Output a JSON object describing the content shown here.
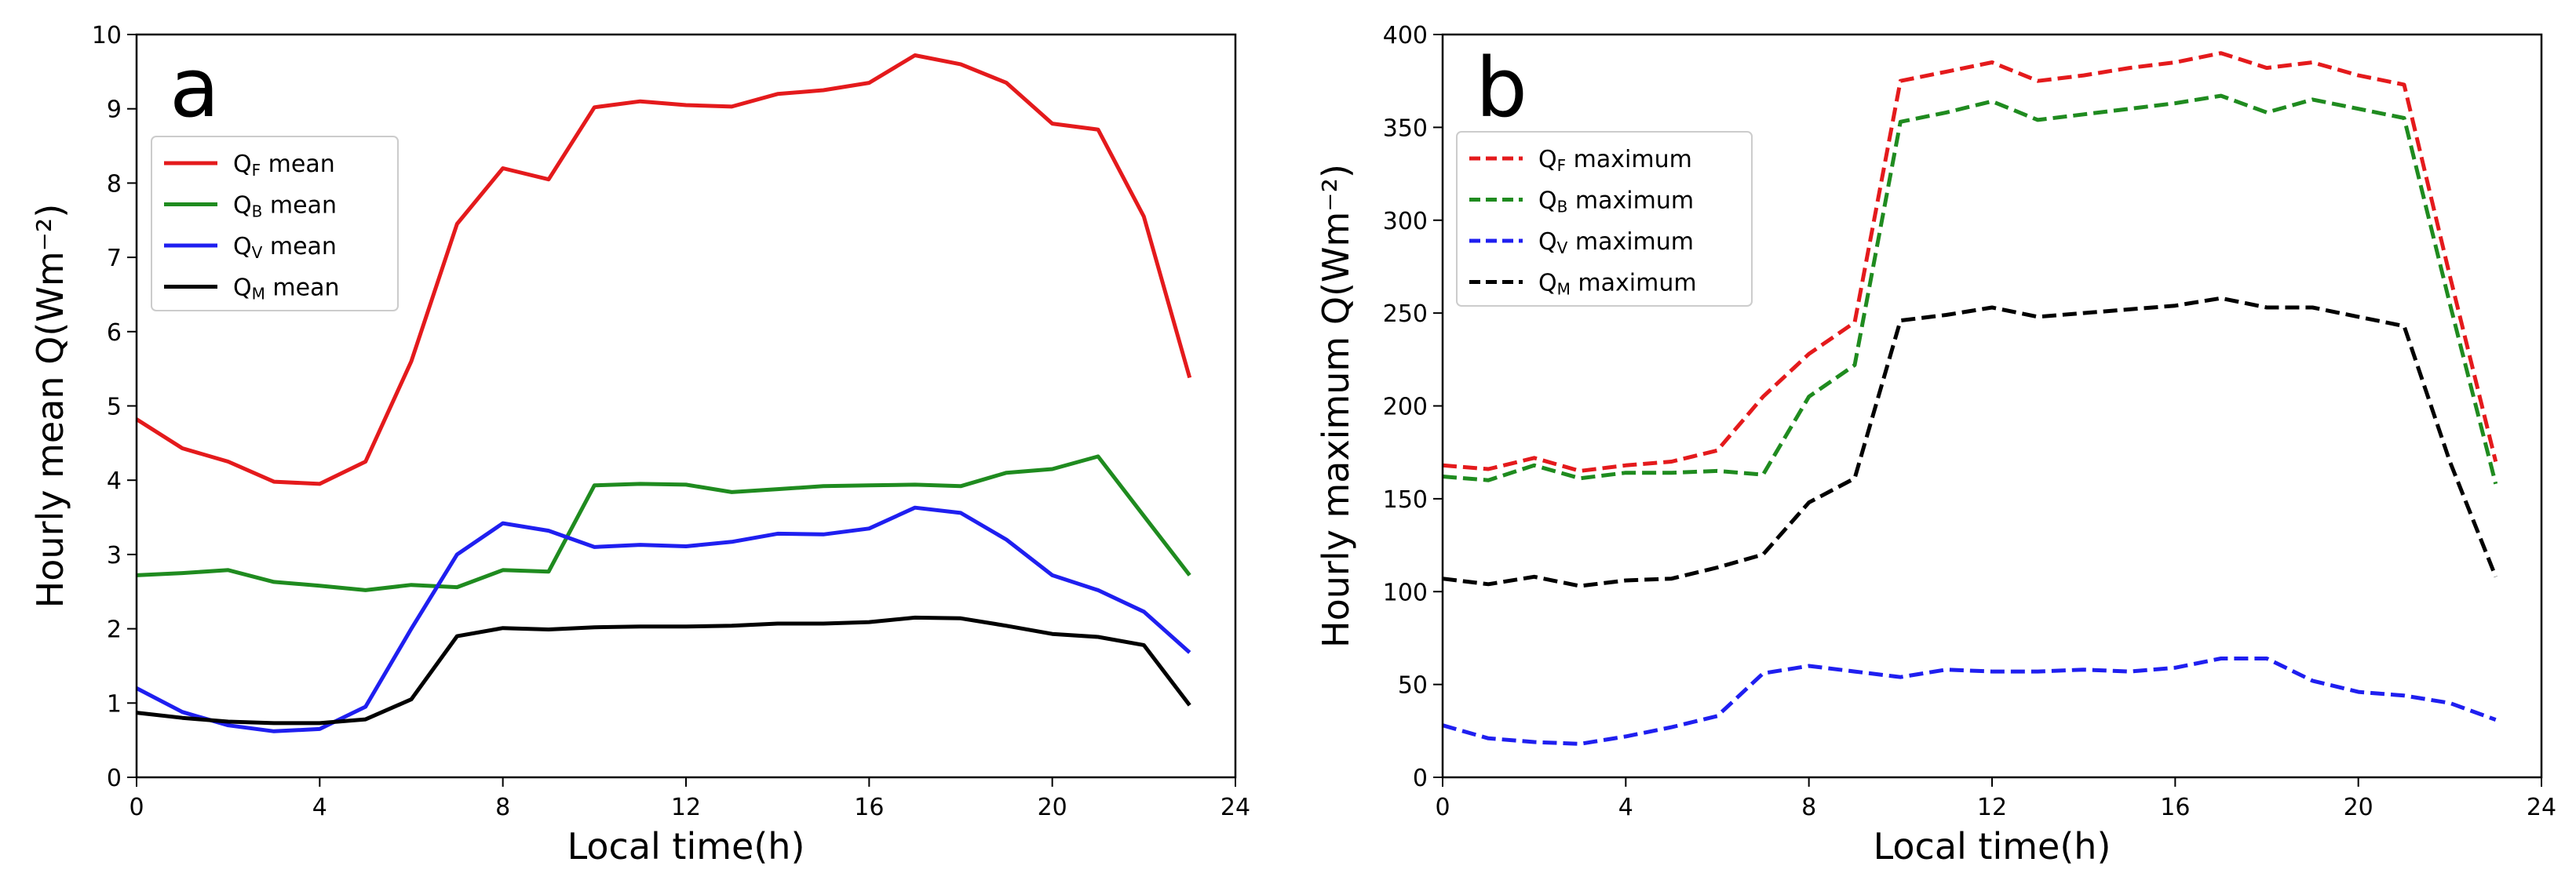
{
  "chart_data": [
    {
      "type": "line",
      "panel_label": "a",
      "xlabel": "Local time(h)",
      "ylabel": "Hourly mean Q(Wm⁻²)",
      "xlim": [
        0,
        24
      ],
      "ylim": [
        0,
        10
      ],
      "xticks": [
        0,
        4,
        8,
        12,
        16,
        20,
        24
      ],
      "yticks": [
        0,
        1,
        2,
        3,
        4,
        5,
        6,
        7,
        8,
        9,
        10
      ],
      "legend_position": "upper-left",
      "x": [
        0,
        1,
        2,
        3,
        4,
        5,
        6,
        7,
        8,
        9,
        10,
        11,
        12,
        13,
        14,
        15,
        16,
        17,
        18,
        19,
        20,
        21,
        22,
        23
      ],
      "series": [
        {
          "name_main": "Q",
          "name_sub": "F",
          "name_suffix": " mean",
          "color": "#e41a1c",
          "style": "solid",
          "values": [
            4.82,
            4.43,
            4.25,
            3.98,
            3.95,
            4.25,
            5.6,
            7.45,
            8.2,
            8.05,
            9.02,
            9.1,
            9.05,
            9.03,
            9.2,
            9.25,
            9.35,
            9.72,
            9.6,
            9.35,
            8.8,
            8.72,
            7.55,
            5.38
          ]
        },
        {
          "name_main": "Q",
          "name_sub": "B",
          "name_suffix": " mean",
          "color": "#1f8b1f",
          "style": "solid",
          "values": [
            2.72,
            2.75,
            2.79,
            2.63,
            2.58,
            2.52,
            2.59,
            2.56,
            2.79,
            2.77,
            3.93,
            3.95,
            3.94,
            3.84,
            3.88,
            3.92,
            3.93,
            3.94,
            3.92,
            4.1,
            4.15,
            4.32,
            3.52,
            2.72
          ]
        },
        {
          "name_main": "Q",
          "name_sub": "V",
          "name_suffix": " mean",
          "color": "#1f1ff0",
          "style": "solid",
          "values": [
            1.2,
            0.88,
            0.7,
            0.62,
            0.65,
            0.95,
            2.0,
            3.0,
            3.42,
            3.32,
            3.1,
            3.13,
            3.11,
            3.17,
            3.28,
            3.27,
            3.35,
            3.63,
            3.56,
            3.2,
            2.72,
            2.52,
            2.23,
            1.68
          ]
        },
        {
          "name_main": "Q",
          "name_sub": "M",
          "name_suffix": " mean",
          "color": "#000000",
          "style": "solid",
          "values": [
            0.87,
            0.8,
            0.75,
            0.73,
            0.73,
            0.78,
            1.05,
            1.9,
            2.01,
            1.99,
            2.02,
            2.03,
            2.03,
            2.04,
            2.07,
            2.07,
            2.09,
            2.15,
            2.14,
            2.04,
            1.93,
            1.89,
            1.78,
            0.97
          ]
        }
      ]
    },
    {
      "type": "line",
      "panel_label": "b",
      "xlabel": "Local time(h)",
      "ylabel": "Hourly maximum Q(Wm⁻²)",
      "xlim": [
        0,
        24
      ],
      "ylim": [
        0,
        400
      ],
      "xticks": [
        0,
        4,
        8,
        12,
        16,
        20,
        24
      ],
      "yticks": [
        0,
        50,
        100,
        150,
        200,
        250,
        300,
        350,
        400
      ],
      "legend_position": "upper-left",
      "x": [
        0,
        1,
        2,
        3,
        4,
        5,
        6,
        7,
        8,
        9,
        10,
        11,
        12,
        13,
        14,
        15,
        16,
        17,
        18,
        19,
        20,
        21,
        22,
        23
      ],
      "series": [
        {
          "name_main": "Q",
          "name_sub": "F",
          "name_suffix": " maximum",
          "color": "#e41a1c",
          "style": "dashed",
          "values": [
            168,
            166,
            172,
            165,
            168,
            170,
            176,
            205,
            228,
            245,
            375,
            380,
            385,
            375,
            378,
            382,
            385,
            390,
            382,
            385,
            378,
            373,
            270,
            170
          ]
        },
        {
          "name_main": "Q",
          "name_sub": "B",
          "name_suffix": " maximum",
          "color": "#1f8b1f",
          "style": "dashed",
          "values": [
            162,
            160,
            168,
            161,
            164,
            164,
            165,
            163,
            205,
            222,
            353,
            358,
            364,
            354,
            357,
            360,
            363,
            367,
            358,
            365,
            360,
            355,
            255,
            158
          ]
        },
        {
          "name_main": "Q",
          "name_sub": "V",
          "name_suffix": " maximum",
          "color": "#1f1ff0",
          "style": "dashed",
          "values": [
            28,
            21,
            19,
            18,
            22,
            27,
            33,
            56,
            60,
            57,
            54,
            58,
            57,
            57,
            58,
            57,
            59,
            64,
            64,
            52,
            46,
            44,
            40,
            31
          ]
        },
        {
          "name_main": "Q",
          "name_sub": "M",
          "name_suffix": " maximum",
          "color": "#000000",
          "style": "dashed",
          "values": [
            107,
            104,
            108,
            103,
            106,
            107,
            113,
            120,
            148,
            161,
            246,
            249,
            253,
            248,
            250,
            252,
            254,
            258,
            253,
            253,
            248,
            243,
            170,
            108
          ]
        }
      ]
    }
  ]
}
